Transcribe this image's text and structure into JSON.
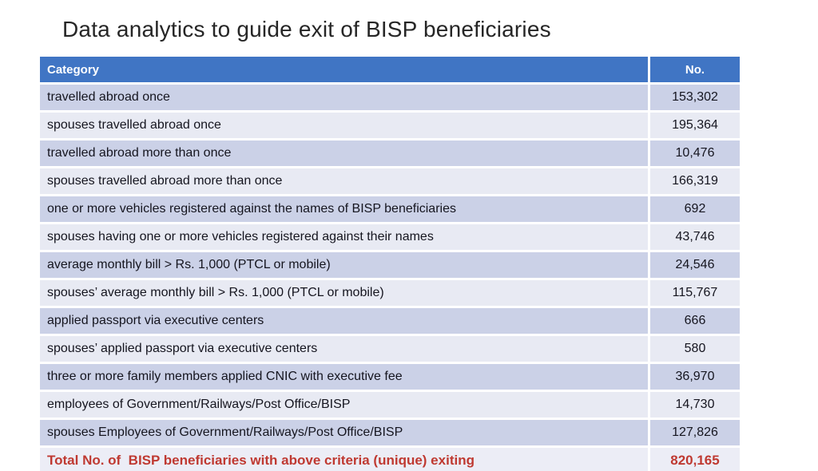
{
  "slide": {
    "title": "Data analytics to guide exit of BISP beneficiaries"
  },
  "table": {
    "headers": {
      "category": "Category",
      "number": "No."
    },
    "rows": [
      {
        "category": "travelled abroad once",
        "value": "153,302"
      },
      {
        "category": "spouses travelled abroad once",
        "value": "195,364"
      },
      {
        "category": "travelled abroad more than once",
        "value": "10,476"
      },
      {
        "category": "spouses travelled abroad more than once",
        "value": "166,319"
      },
      {
        "category": "one or more vehicles registered against the names of BISP beneficiaries",
        "value": "692"
      },
      {
        "category": "spouses having one or more vehicles registered against their names",
        "value": "43,746"
      },
      {
        "category": "average monthly bill > Rs. 1,000 (PTCL or mobile)",
        "value": "24,546"
      },
      {
        "category": "spouses’ average monthly bill > Rs. 1,000 (PTCL or mobile)",
        "value": "115,767"
      },
      {
        "category": "applied passport via executive centers",
        "value": "666"
      },
      {
        "category": "spouses’ applied passport via executive centers",
        "value": "580"
      },
      {
        "category": "three or more family members applied CNIC with executive fee",
        "value": "36,970"
      },
      {
        "category": "employees of Government/Railways/Post Office/BISP",
        "value": "14,730"
      },
      {
        "category": "spouses Employees of Government/Railways/Post Office/BISP",
        "value": "127,826"
      }
    ],
    "total": {
      "label": "Total No. of  BISP beneficiaries with above criteria (unique) exiting",
      "value": "820,165"
    }
  },
  "colors": {
    "header_bg": "#4075c4",
    "header_text": "#ffffff",
    "band_dark": "#cbd1e7",
    "band_light": "#e8eaf3",
    "total_bg": "#ecedf6",
    "total_text": "#bf3931",
    "title_text": "#262626"
  }
}
